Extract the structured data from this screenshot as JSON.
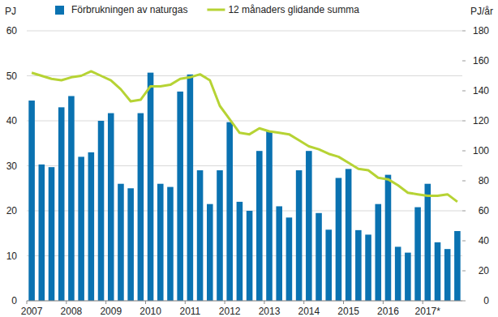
{
  "chart_data": {
    "type": "bar",
    "ylabel": "PJ",
    "y2label": "PJ/år",
    "categories": [
      "2007",
      null,
      null,
      null,
      "2008",
      null,
      null,
      null,
      "2009",
      null,
      null,
      null,
      "2010",
      null,
      null,
      null,
      "2011",
      null,
      null,
      null,
      "2012",
      null,
      null,
      null,
      "2013",
      null,
      null,
      null,
      "2014",
      null,
      null,
      null,
      "2015",
      null,
      null,
      null,
      "2016",
      null,
      null,
      null,
      "2017*",
      null,
      null,
      null
    ],
    "series": [
      {
        "name": "Förbrukningen av naturgas",
        "type": "bar",
        "color": "#0a72b1",
        "values": [
          44.5,
          30.3,
          29.7,
          43,
          45.5,
          32,
          33,
          40,
          41.7,
          26,
          25,
          41.7,
          50.7,
          26,
          25.3,
          46.5,
          50.3,
          29,
          21.5,
          29,
          39.7,
          22,
          20,
          33.3,
          37.7,
          21,
          18.5,
          29,
          33.3,
          19.5,
          15.8,
          27.3,
          29.3,
          15.7,
          14.7,
          21.5,
          28,
          12,
          10.7,
          20.8,
          26,
          13,
          11.5,
          15.5
        ]
      },
      {
        "name": "12 månaders glidande summa",
        "type": "line",
        "axis": "y2",
        "color": "#b6d334",
        "values": [
          152,
          150,
          148,
          147,
          149,
          150,
          153,
          150,
          147,
          141,
          133,
          134,
          143,
          143,
          144,
          148,
          149,
          151,
          147,
          130,
          121,
          112,
          111,
          115,
          113,
          112,
          111,
          107,
          103,
          101,
          98,
          96,
          92,
          88,
          87,
          82,
          81,
          77,
          72,
          71,
          70,
          70,
          71,
          66
        ]
      }
    ],
    "ylim": [
      0,
      60
    ],
    "yticks": [
      0,
      10,
      20,
      30,
      40,
      50,
      60
    ],
    "y2lim": [
      0,
      180
    ],
    "y2ticks": [
      0,
      20,
      40,
      60,
      80,
      100,
      120,
      140,
      160,
      180
    ],
    "grid": true,
    "legend": "top"
  }
}
